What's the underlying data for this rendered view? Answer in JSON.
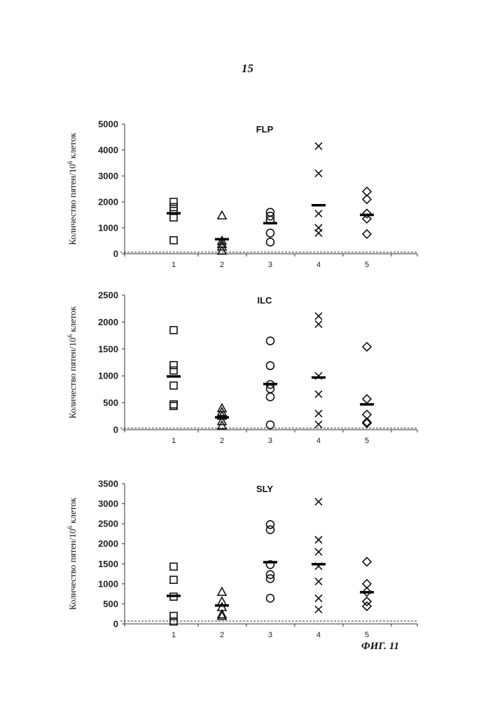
{
  "page_number": "15",
  "figure_label": "ФИГ. 11",
  "chart_data": [
    {
      "type": "scatter",
      "title": "FLP",
      "ylabel": "Количество пятен/10",
      "ylabel_sup": "6",
      "ylabel_suffix": " клеток",
      "ylim": [
        0,
        5000
      ],
      "yticks": [
        0,
        1000,
        2000,
        3000,
        4000,
        5000
      ],
      "xticks": [
        "1",
        "2",
        "3",
        "4",
        "5"
      ],
      "cutoff": 60,
      "groups": [
        {
          "x": "1",
          "marker": "square",
          "values": [
            2000,
            1800,
            1650,
            1400,
            520
          ],
          "mean": 1560
        },
        {
          "x": "2",
          "marker": "triangle",
          "values": [
            1480,
            500,
            380,
            280,
            120
          ],
          "mean": 560
        },
        {
          "x": "3",
          "marker": "circle",
          "values": [
            1600,
            1450,
            1300,
            800,
            450
          ],
          "mean": 1180
        },
        {
          "x": "4",
          "marker": "x",
          "values": [
            4150,
            3100,
            1550,
            1000,
            800
          ],
          "mean": 1870
        },
        {
          "x": "5",
          "marker": "diamond",
          "values": [
            2400,
            2100,
            1550,
            1350,
            760
          ],
          "mean": 1500
        }
      ]
    },
    {
      "type": "scatter",
      "title": "ILC",
      "ylabel": "Количество пятен/10",
      "ylabel_sup": "6",
      "ylabel_suffix": " клеток",
      "ylim": [
        0,
        2500
      ],
      "yticks": [
        0,
        500,
        1000,
        1500,
        2000,
        2500
      ],
      "xticks": [
        "1",
        "2",
        "3",
        "4",
        "5"
      ],
      "cutoff": 30,
      "groups": [
        {
          "x": "1",
          "marker": "square",
          "values": [
            1850,
            1200,
            1100,
            820,
            470,
            440
          ],
          "mean": 990
        },
        {
          "x": "2",
          "marker": "triangle",
          "values": [
            400,
            330,
            260,
            160,
            80
          ],
          "mean": 230
        },
        {
          "x": "3",
          "marker": "circle",
          "values": [
            1650,
            1190,
            840,
            760,
            610,
            90
          ],
          "mean": 850
        },
        {
          "x": "4",
          "marker": "x",
          "values": [
            2110,
            1960,
            1000,
            660,
            300,
            100
          ],
          "mean": 970
        },
        {
          "x": "5",
          "marker": "diamond",
          "values": [
            1540,
            570,
            280,
            140,
            120
          ],
          "mean": 470
        }
      ]
    },
    {
      "type": "scatter",
      "title": "SLY",
      "ylabel": "Количество пятен/10",
      "ylabel_sup": "6",
      "ylabel_suffix": " клеток",
      "ylim": [
        0,
        3500
      ],
      "yticks": [
        0,
        500,
        1000,
        1500,
        2000,
        2500,
        3000,
        3500
      ],
      "xticks": [
        "1",
        "2",
        "3",
        "4",
        "5"
      ],
      "cutoff": 70,
      "groups": [
        {
          "x": "1",
          "marker": "square",
          "values": [
            1430,
            1100,
            680,
            200,
            60
          ],
          "mean": 700
        },
        {
          "x": "2",
          "marker": "triangle",
          "values": [
            800,
            560,
            420,
            240,
            200
          ],
          "mean": 460
        },
        {
          "x": "3",
          "marker": "circle",
          "values": [
            2480,
            2350,
            1480,
            1230,
            1130,
            640
          ],
          "mean": 1540
        },
        {
          "x": "4",
          "marker": "x",
          "values": [
            3050,
            2100,
            1800,
            1440,
            1060,
            640,
            360
          ],
          "mean": 1490
        },
        {
          "x": "5",
          "marker": "diamond",
          "values": [
            1550,
            1000,
            800,
            560,
            440
          ],
          "mean": 790
        }
      ]
    }
  ]
}
